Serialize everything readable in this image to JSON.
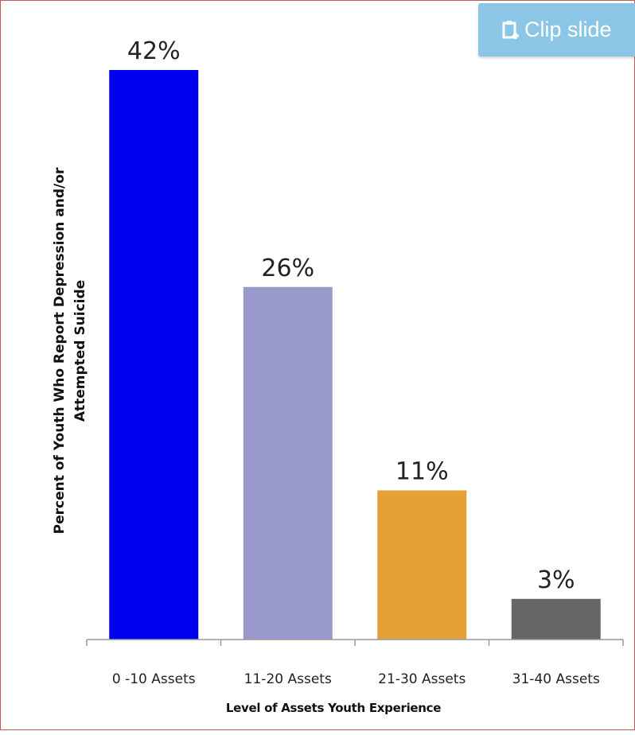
{
  "clip_button": {
    "label": "Clip slide",
    "icon": "clipboard-icon",
    "color": "#8cc6e6"
  },
  "chart_data": {
    "type": "bar",
    "categories": [
      "0 -10 Assets",
      "11-20 Assets",
      "21-30 Assets",
      "31-40 Assets"
    ],
    "values": [
      42,
      26,
      11,
      3
    ],
    "value_labels": [
      "42%",
      "26%",
      "11%",
      "3%"
    ],
    "colors": [
      "#0000ee",
      "#9999cc",
      "#e5a038",
      "#666666"
    ],
    "xlabel": "Level of Assets Youth Experience",
    "ylabel": "Percent of Youth Who Report Depression and/or Attempted Suicide",
    "ylim": [
      0,
      42
    ],
    "grid": false,
    "legend": "none"
  }
}
